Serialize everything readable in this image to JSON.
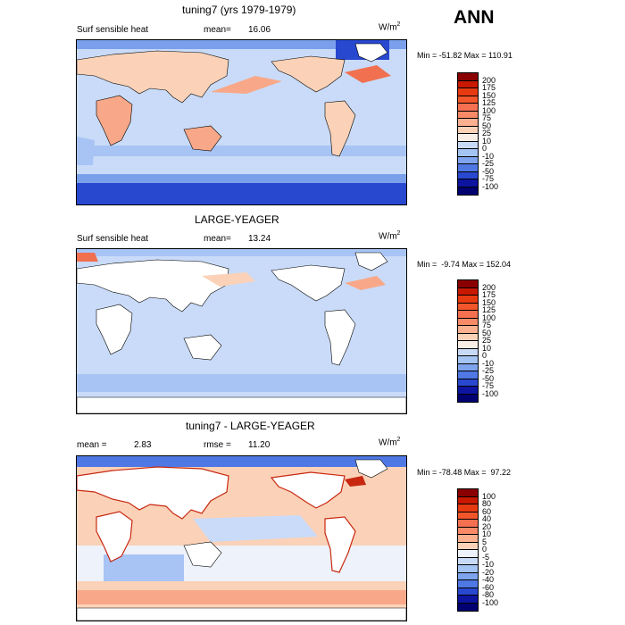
{
  "season": "ANN",
  "panels": [
    {
      "title": "tuning7 (yrs 1979-1979)",
      "left_label": "Surf sensible heat",
      "stat_label": "mean=",
      "stat_value": "16.06",
      "unit_base": "W/m",
      "unit_exp": "2",
      "minmax": "Min = -51.82 Max = 110.91",
      "cbar_labels": [
        "200",
        "175",
        "150",
        "125",
        "100",
        "75",
        "50",
        "25",
        "10",
        "0",
        "-10",
        "-25",
        "-50",
        "-75",
        "-100"
      ],
      "cbar_colors": [
        "#8a0000",
        "#c81800",
        "#e83a10",
        "#f2562a",
        "#f47050",
        "#f88a68",
        "#fbb090",
        "#fbd2b8",
        "#f8eee6",
        "#c8daf8",
        "#a4c4f4",
        "#7ea4ee",
        "#4f78e4",
        "#2848d0",
        "#0c14a0",
        "#000070"
      ]
    },
    {
      "title": "LARGE-YEAGER",
      "left_label": "Surf sensible heat",
      "stat_label": "mean=",
      "stat_value": "13.24",
      "unit_base": "W/m",
      "unit_exp": "2",
      "minmax": "Min =  -9.74 Max = 152.04",
      "cbar_labels": [
        "200",
        "175",
        "150",
        "125",
        "100",
        "75",
        "50",
        "25",
        "10",
        "0",
        "-10",
        "-25",
        "-50",
        "-75",
        "-100"
      ],
      "cbar_colors": [
        "#8a0000",
        "#c81800",
        "#e83a10",
        "#f2562a",
        "#f47050",
        "#f88a68",
        "#fbb090",
        "#fbd2b8",
        "#f8eee6",
        "#c8daf8",
        "#a4c4f4",
        "#7ea4ee",
        "#4f78e4",
        "#2848d0",
        "#0c14a0",
        "#000070"
      ]
    },
    {
      "title": "tuning7 - LARGE-YEAGER",
      "left_label": "mean =",
      "left_value": "2.83",
      "stat_label": "rmse =",
      "stat_value": "11.20",
      "unit_base": "W/m",
      "unit_exp": "2",
      "minmax": "Min = -78.48 Max =  97.22",
      "cbar_labels": [
        "100",
        "80",
        "60",
        "40",
        "20",
        "10",
        "5",
        "0",
        "-5",
        "-10",
        "-20",
        "-40",
        "-60",
        "-80",
        "-100"
      ],
      "cbar_colors": [
        "#8a0000",
        "#c81800",
        "#e83a10",
        "#f2562a",
        "#f47050",
        "#f88a68",
        "#fbb090",
        "#fbd2b8",
        "#eef2fb",
        "#c8daf8",
        "#a4c4f4",
        "#7ea4ee",
        "#4f78e4",
        "#2848d0",
        "#0c14a0",
        "#000070"
      ]
    }
  ],
  "map_colors": {
    "ocean_light": "#c9dbf8",
    "ocean_mid": "#a8c4f4",
    "ocean_blue": "#7aa0ec",
    "ocean_deep": "#2848d0",
    "warm_light": "#fbd2b8",
    "warm_mid": "#f8a888",
    "warm_strong": "#f07050",
    "warm_deep": "#c82810",
    "land_white": "#ffffff"
  }
}
